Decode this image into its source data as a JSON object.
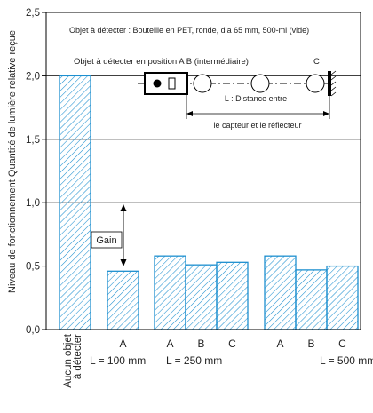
{
  "chart_data": {
    "type": "bar",
    "title": "",
    "subtitle": "Objet à détecter : Bouteille en PET, ronde, dia 65 mm, 500-ml (vide)",
    "ylabel": "Niveau de fonctionnement  Quantité de lumière relative reçue",
    "xlabel": "",
    "ylim": [
      0,
      2.5
    ],
    "yticks": [
      "0,0",
      "0,5",
      "1,0",
      "1,5",
      "2,0",
      "2,5"
    ],
    "grid": true,
    "values": [
      2.0,
      0.46,
      0.58,
      0.51,
      0.53,
      0.58,
      0.47,
      0.5
    ],
    "bar_labels": [
      "Aucun objet à détecter",
      "A",
      "A",
      "B",
      "C",
      "A",
      "B",
      "C"
    ],
    "groups": [
      {
        "label": "L = 100 mm",
        "bars": [
          1
        ]
      },
      {
        "label": "L = 250 mm",
        "bars": [
          2,
          3,
          4
        ]
      },
      {
        "label": "L = 500 mm",
        "bars": [
          5,
          6,
          7
        ]
      }
    ],
    "annotations": {
      "gain": "Gain",
      "position_text": "Objet à détecter en position A B (intermédiaire)",
      "c_label": "C",
      "distance_line1": "L : Distance entre",
      "distance_line2": "le capteur et le réflecteur"
    },
    "colors": {
      "bar": "#1d8fcf",
      "hatch": "#1d8fcf",
      "axis": "#000000"
    }
  }
}
